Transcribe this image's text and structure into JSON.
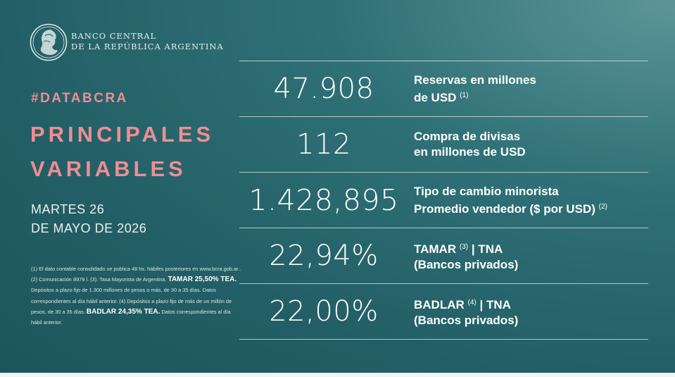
{
  "org": {
    "line1": "BANCO CENTRAL",
    "line2": "DE LA REPÚBLICA ARGENTINA"
  },
  "hashtag": "#DATABCRA",
  "title": {
    "line1": "PRINCIPALES",
    "line2": "VARIABLES"
  },
  "date": {
    "line1": "MARTES 26",
    "line2": "DE MAYO DE 2026"
  },
  "indicators": [
    {
      "value": "47.908",
      "label_line1": "Reservas en millones",
      "label_line2": "de USD",
      "note2": "(1)"
    },
    {
      "value": "112",
      "label_line1": "Compra de divisas",
      "label_line2": "en millones de USD"
    },
    {
      "value": "1.428,895",
      "label_line1": "Tipo de cambio minorista",
      "label_line2": "Promedio vendedor ($ por USD)",
      "note2": "(2)"
    },
    {
      "value": "22,94%",
      "label_line1a": "TAMAR",
      "note1": "(3)",
      "label_line1b": "| TNA",
      "label_line2": "(Bancos privados)"
    },
    {
      "value": "22,00%",
      "label_line1a": "BADLAR",
      "note1": "(4)",
      "label_line1b": "| TNA",
      "label_line2": "(Bancos privados)"
    }
  ],
  "footnotes": {
    "p1": "(1) El dato contable consolidado se publica 48 hs. hábiles posteriores en www.bcra.gob.ar.. (2) Comunicación 8979 l. (3). Tasa Mayorista de Argentina.",
    "tamar_bold": "TAMAR 25,50% TEA.",
    "p2": "Depósitos a plazo fijo de 1.300 millones de pesos o más, de 30 a 35 días. Datos correspondientes al día hábil anterior. (4) Depósitos a plazo fijo de más de un millón de pesos, de 30 a 35 días.",
    "badlar_bold": "BADLAR 24,35% TEA.",
    "p3": "Datos correspondientes al día hábil anterior."
  }
}
